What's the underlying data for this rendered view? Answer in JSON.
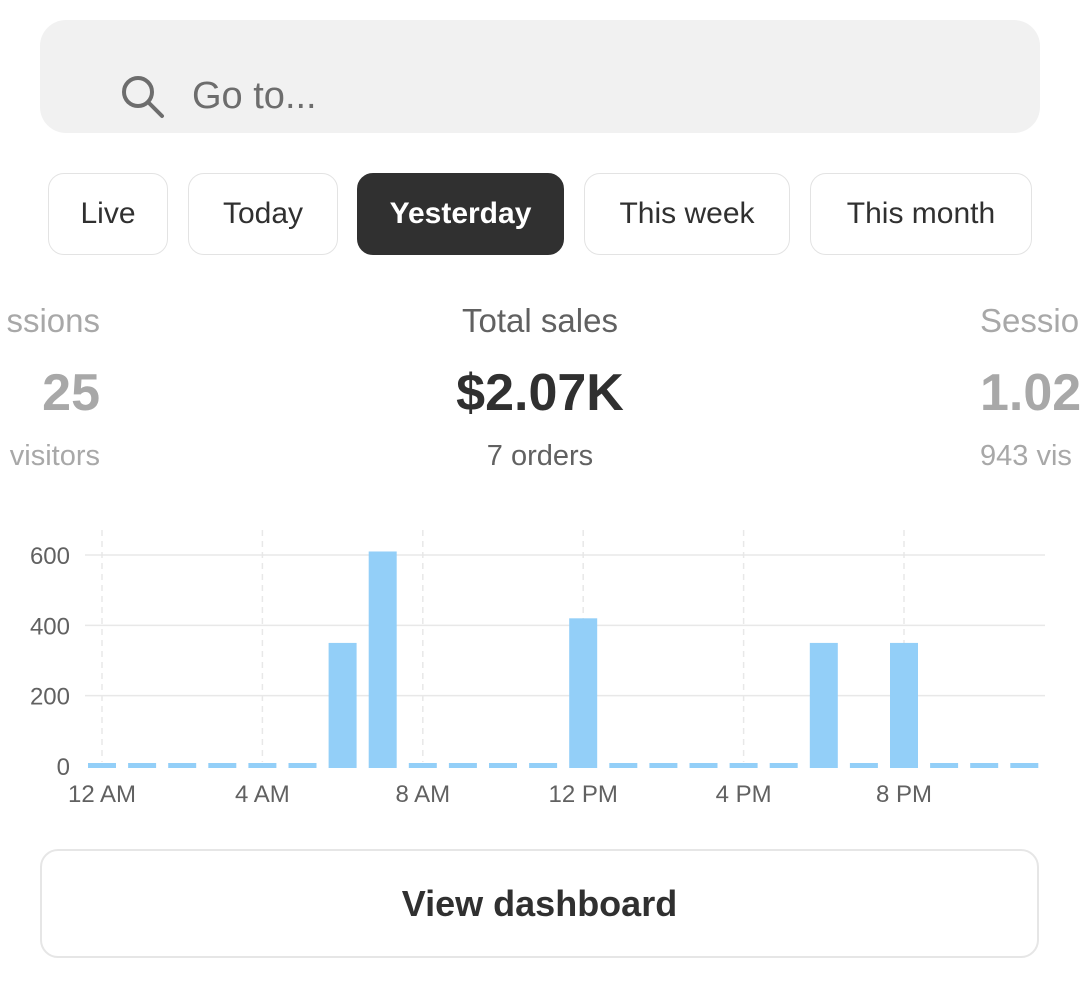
{
  "search": {
    "placeholder": "Go to..."
  },
  "tabs": [
    {
      "label": "Live",
      "active": false
    },
    {
      "label": "Today",
      "active": false
    },
    {
      "label": "Yesterday",
      "active": true
    },
    {
      "label": "This week",
      "active": false
    },
    {
      "label": "This month",
      "active": false
    }
  ],
  "metrics": {
    "left": {
      "label": "ssions",
      "value": "25",
      "sub": "visitors"
    },
    "center": {
      "label": "Total sales",
      "value": "$2.07K",
      "sub": "7 orders"
    },
    "right": {
      "label": "Sessio",
      "value": "1.02",
      "sub": "943 vis"
    }
  },
  "chart_data": {
    "type": "bar",
    "title": "",
    "xlabel": "",
    "ylabel": "",
    "ylim": [
      0,
      600
    ],
    "y_ticks": [
      "600",
      "400",
      "200",
      "0"
    ],
    "x_tick_labels": [
      "12 AM",
      "4 AM",
      "8 AM",
      "12 PM",
      "4 PM",
      "8 PM"
    ],
    "values": [
      0,
      0,
      0,
      0,
      0,
      0,
      350,
      610,
      0,
      0,
      0,
      0,
      420,
      0,
      0,
      0,
      0,
      0,
      350,
      0,
      350,
      0,
      0,
      0
    ],
    "bar_color": "#93cff8",
    "grid": true
  },
  "footer": {
    "button_label": "View dashboard"
  }
}
